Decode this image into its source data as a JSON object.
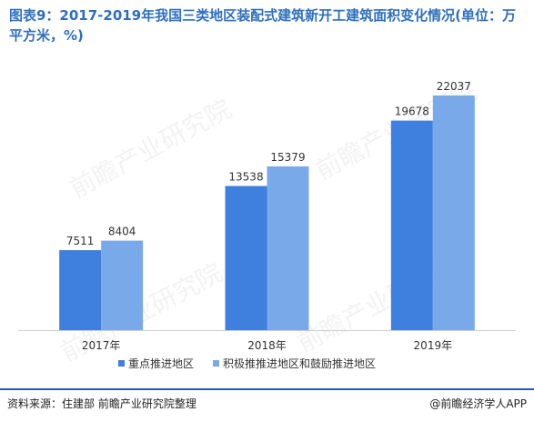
{
  "title": "图表9：2017-2019年我国三类地区装配式建筑新开工建筑面积变化情况(单位：万平方米，%)",
  "watermark": "前瞻产业研究院",
  "source": "资料来源：住建部  前瞻产业研究院整理",
  "brand": "@前瞻经济学人APP",
  "chart_data": {
    "type": "bar",
    "categories": [
      "2017年",
      "2018年",
      "2019年"
    ],
    "series": [
      {
        "name": "重点推进地区",
        "values": [
          7511,
          13538,
          19678
        ],
        "color": "#3f7fdd"
      },
      {
        "name": "积极推推进地区和鼓励推进地区",
        "values": [
          8404,
          15379,
          22037
        ],
        "color": "#7aa9ea"
      }
    ],
    "ylim": [
      0,
      24000
    ],
    "grid": false,
    "legend": "bottom"
  }
}
